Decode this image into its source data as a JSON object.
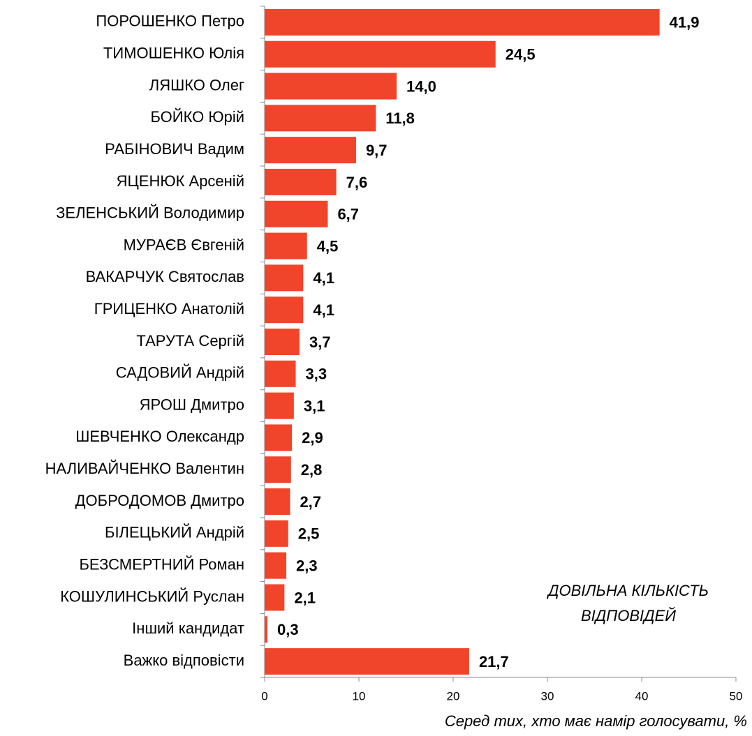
{
  "chart_data": {
    "type": "bar",
    "orientation": "horizontal",
    "categories": [
      "ПОРОШЕНКО Петро",
      "ТИМОШЕНКО Юлія",
      "ЛЯШКО Олег",
      "БОЙКО Юрій",
      "РАБІНОВИЧ Вадим",
      "ЯЦЕНЮК Арсеній",
      "ЗЕЛЕНСЬКИЙ Володимир",
      "МУРАЄВ Євгеній",
      "ВАКАРЧУК Святослав",
      "ГРИЦЕНКО Анатолій",
      "ТАРУТА Сергій",
      "САДОВИЙ Андрій",
      "ЯРОШ Дмитро",
      "ШЕВЧЕНКО Олександр",
      "НАЛИВАЙЧЕНКО Валентин",
      "ДОБРОДОМОВ Дмитро",
      "БІЛЕЦЬКИЙ Андрій",
      "БЕЗСМЕРТНИЙ Роман",
      "КОШУЛИНСЬКИЙ Руслан",
      "Інший кандидат",
      "Важко відповісти"
    ],
    "values": [
      41.9,
      24.5,
      14.0,
      11.8,
      9.7,
      7.6,
      6.7,
      4.5,
      4.1,
      4.1,
      3.7,
      3.3,
      3.1,
      2.9,
      2.8,
      2.7,
      2.5,
      2.3,
      2.1,
      0.3,
      21.7
    ],
    "value_labels": [
      "41,9",
      "24,5",
      "14,0",
      "11,8",
      "9,7",
      "7,6",
      "6,7",
      "4,5",
      "4,1",
      "4,1",
      "3,7",
      "3,3",
      "3,1",
      "2,9",
      "2,8",
      "2,7",
      "2,5",
      "2,3",
      "2,1",
      "0,3",
      "21,7"
    ],
    "color": "#f0452b",
    "xlim": [
      0,
      50
    ],
    "xticks": [
      0,
      10,
      20,
      30,
      40,
      50
    ],
    "x_label": "Серед тих, хто має намір голосувати, %",
    "annotation": [
      "ДОВІЛЬНА КІЛЬКІСТЬ",
      "ВІДПОВІДЕЙ"
    ]
  }
}
